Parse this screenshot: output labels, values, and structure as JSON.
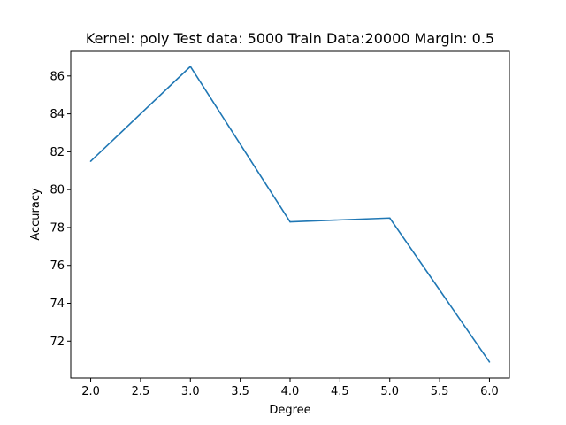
{
  "chart_data": {
    "type": "line",
    "title": "Kernel: poly Test data: 5000  Train Data:20000 Margin: 0.5",
    "xlabel": "Degree",
    "ylabel": "Accuracy",
    "xlim": [
      1.8,
      6.2
    ],
    "ylim": [
      70.05,
      87.3
    ],
    "xticks": [
      2.0,
      2.5,
      3.0,
      3.5,
      4.0,
      4.5,
      5.0,
      5.5,
      6.0
    ],
    "xtick_labels": [
      "2.0",
      "2.5",
      "3.0",
      "3.5",
      "4.0",
      "4.5",
      "5.0",
      "5.5",
      "6.0"
    ],
    "yticks": [
      72,
      74,
      76,
      78,
      80,
      82,
      84,
      86
    ],
    "ytick_labels": [
      "72",
      "74",
      "76",
      "78",
      "80",
      "82",
      "84",
      "86"
    ],
    "grid": false,
    "legend": "none",
    "series": [
      {
        "color": "#1f77b4",
        "x": [
          2,
          3,
          4,
          5,
          6
        ],
        "y": [
          81.5,
          86.5,
          78.3,
          78.5,
          70.9
        ]
      }
    ]
  }
}
